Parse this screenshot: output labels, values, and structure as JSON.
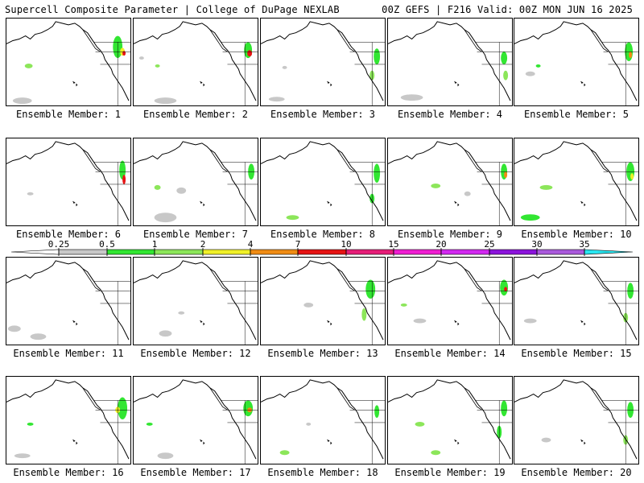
{
  "header": {
    "title_left": "Supercell Composite Parameter | College of DuPage NEXLAB",
    "title_right": "00Z GEFS | F216 Valid: 00Z MON JUN 16 2025"
  },
  "panels": [
    {
      "label": "Ensemble Member: 1"
    },
    {
      "label": "Ensemble Member: 2"
    },
    {
      "label": "Ensemble Member: 3"
    },
    {
      "label": "Ensemble Member: 4"
    },
    {
      "label": "Ensemble Member: 5"
    },
    {
      "label": "Ensemble Member: 6"
    },
    {
      "label": "Ensemble Member: 7"
    },
    {
      "label": "Ensemble Member: 8"
    },
    {
      "label": "Ensemble Member: 9"
    },
    {
      "label": "Ensemble Member: 10"
    },
    {
      "label": "Ensemble Member: 11"
    },
    {
      "label": "Ensemble Member: 12"
    },
    {
      "label": "Ensemble Member: 13"
    },
    {
      "label": "Ensemble Member: 14"
    },
    {
      "label": "Ensemble Member: 15"
    },
    {
      "label": "Ensemble Member: 16"
    },
    {
      "label": "Ensemble Member: 17"
    },
    {
      "label": "Ensemble Member: 18"
    },
    {
      "label": "Ensemble Member: 19"
    },
    {
      "label": "Ensemble Member: 20"
    }
  ],
  "colorbar": {
    "ticks": [
      "0.25",
      "0.5",
      "1",
      "2",
      "4",
      "7",
      "10",
      "15",
      "20",
      "25",
      "30",
      "35"
    ],
    "colors": [
      "#ffffff",
      "#c8c8c8",
      "#32e632",
      "#8ce65a",
      "#f0f028",
      "#f08c14",
      "#e61414",
      "#e61e78",
      "#f01ed2",
      "#d228f0",
      "#8c14dc",
      "#aa5adc",
      "#28e6f0"
    ]
  }
}
